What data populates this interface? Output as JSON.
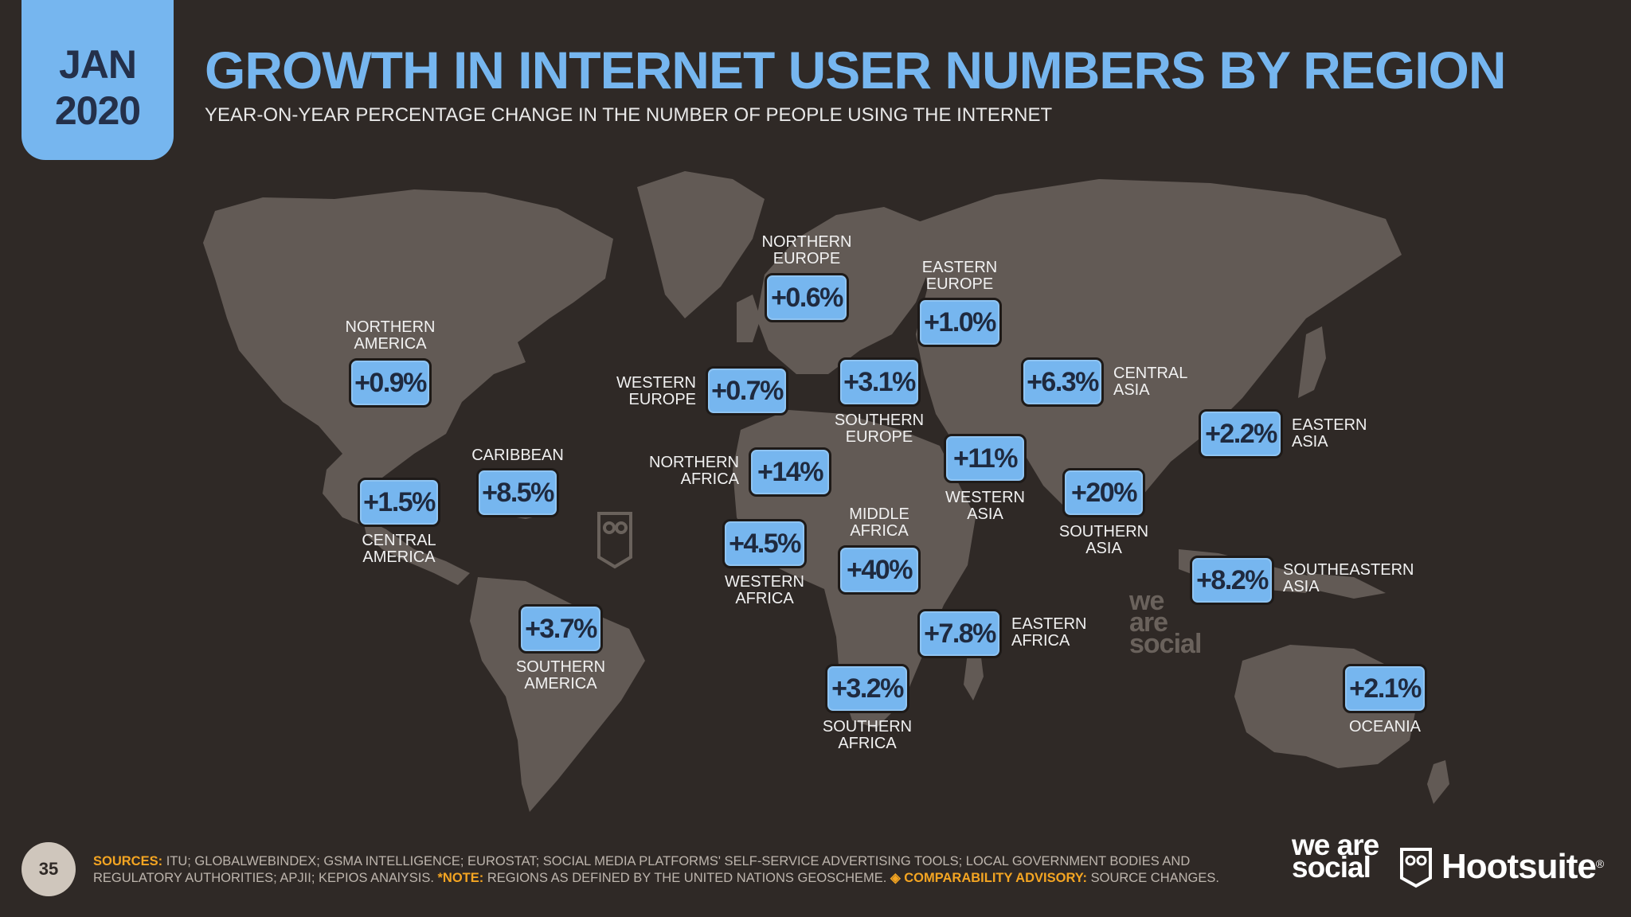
{
  "header": {
    "month": "JAN",
    "year": "2020",
    "title": "GROWTH IN INTERNET USER NUMBERS BY REGION",
    "subtitle": "YEAR-ON-YEAR PERCENTAGE CHANGE IN THE NUMBER OF PEOPLE USING THE INTERNET"
  },
  "regions": {
    "northern_america": {
      "l1": "NORTHERN",
      "l2": "AMERICA",
      "value": "+0.9%"
    },
    "central_america": {
      "l1": "CENTRAL",
      "l2": "AMERICA",
      "value": "+1.5%"
    },
    "caribbean": {
      "l1": "CARIBBEAN",
      "value": "+8.5%"
    },
    "southern_america": {
      "l1": "SOUTHERN",
      "l2": "AMERICA",
      "value": "+3.7%"
    },
    "northern_europe": {
      "l1": "NORTHERN",
      "l2": "EUROPE",
      "value": "+0.6%"
    },
    "western_europe": {
      "l1": "WESTERN",
      "l2": "EUROPE",
      "value": "+0.7%"
    },
    "southern_europe": {
      "l1": "SOUTHERN",
      "l2": "EUROPE",
      "value": "+3.1%"
    },
    "eastern_europe": {
      "l1": "EASTERN",
      "l2": "EUROPE",
      "value": "+1.0%"
    },
    "northern_africa": {
      "l1": "NORTHERN",
      "l2": "AFRICA",
      "value": "+14%"
    },
    "western_africa": {
      "l1": "WESTERN",
      "l2": "AFRICA",
      "value": "+4.5%"
    },
    "middle_africa": {
      "l1": "MIDDLE",
      "l2": "AFRICA",
      "value": "+40%"
    },
    "eastern_africa": {
      "l1": "EASTERN",
      "l2": "AFRICA",
      "value": "+7.8%"
    },
    "southern_africa": {
      "l1": "SOUTHERN",
      "l2": "AFRICA",
      "value": "+3.2%"
    },
    "western_asia": {
      "l1": "WESTERN",
      "l2": "ASIA",
      "value": "+11%"
    },
    "central_asia": {
      "l1": "CENTRAL",
      "l2": "ASIA",
      "value": "+6.3%"
    },
    "southern_asia": {
      "l1": "SOUTHERN",
      "l2": "ASIA",
      "value": "+20%"
    },
    "eastern_asia": {
      "l1": "EASTERN",
      "l2": "ASIA",
      "value": "+2.2%"
    },
    "southeastern_asia": {
      "l1": "SOUTHEASTERN",
      "l2": "ASIA",
      "value": "+8.2%"
    },
    "oceania": {
      "l1": "OCEANIA",
      "value": "+2.1%"
    }
  },
  "footer": {
    "page_number": "35",
    "sources_label": "SOURCES:",
    "sources_text": "ITU; GLOBALWEBINDEX; GSMA INTELLIGENCE; EUROSTAT; SOCIAL MEDIA PLATFORMS' SELF-SERVICE ADVERTISING TOOLS; LOCAL GOVERNMENT BODIES AND REGULATORY AUTHORITIES; APJII; KEPIOS ANAlYSIS.",
    "note_label": "*NOTE:",
    "note_text": "REGIONS AS DEFINED BY THE UNITED NATIONS GEOSCHEME.",
    "advisory_label": "◈ COMPARABILITY ADVISORY:",
    "advisory_text": "SOURCE CHANGES.",
    "brand_was": "we are social",
    "brand_hootsuite": "Hootsuite",
    "trademark": "®"
  },
  "colors": {
    "background": "#2f2926",
    "accent": "#76b6ef",
    "land": "#625a55",
    "highlight": "#f4a522"
  }
}
